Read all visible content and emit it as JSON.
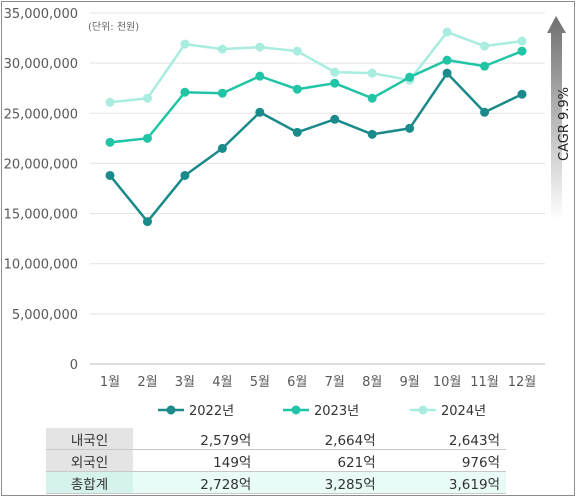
{
  "chart_data": {
    "type": "line",
    "title": "",
    "unit_note": "(단위: 천원)",
    "categories": [
      "1월",
      "2월",
      "3월",
      "4월",
      "5월",
      "6월",
      "7월",
      "8월",
      "9월",
      "10월",
      "11월",
      "12월"
    ],
    "ylim": [
      0,
      35000000
    ],
    "yticks": [
      0,
      5000000,
      10000000,
      15000000,
      20000000,
      25000000,
      30000000,
      35000000
    ],
    "ytick_labels": [
      "0",
      "5,000,000",
      "10,000,000",
      "15,000,000",
      "20,000,000",
      "25,000,000",
      "30,000,000",
      "35,000,000"
    ],
    "grid": true,
    "legend_position": "bottom",
    "series": [
      {
        "name": "2022년",
        "color": "#1a8a8a",
        "values": [
          18800000,
          14200000,
          18800000,
          21500000,
          25100000,
          23100000,
          24400000,
          22900000,
          23500000,
          29000000,
          25100000,
          26900000
        ]
      },
      {
        "name": "2023년",
        "color": "#22c4a6",
        "values": [
          22100000,
          22500000,
          27100000,
          27000000,
          28700000,
          27400000,
          28000000,
          26500000,
          28600000,
          30300000,
          29700000,
          31200000
        ]
      },
      {
        "name": "2024년",
        "color": "#a9ece0",
        "values": [
          26100000,
          26500000,
          31900000,
          31400000,
          31600000,
          31200000,
          29100000,
          29000000,
          28300000,
          33100000,
          31700000,
          32200000
        ]
      }
    ],
    "annotation": "CAGR 9.9%"
  },
  "summary_table": {
    "rows": [
      {
        "label": "내국인",
        "values": [
          "2,579억",
          "2,664억",
          "2,643억"
        ]
      },
      {
        "label": "외국인",
        "values": [
          "149억",
          "621억",
          "976억"
        ]
      },
      {
        "label": "총합계",
        "values": [
          "2,728억",
          "3,285억",
          "3,619억"
        ]
      }
    ]
  }
}
